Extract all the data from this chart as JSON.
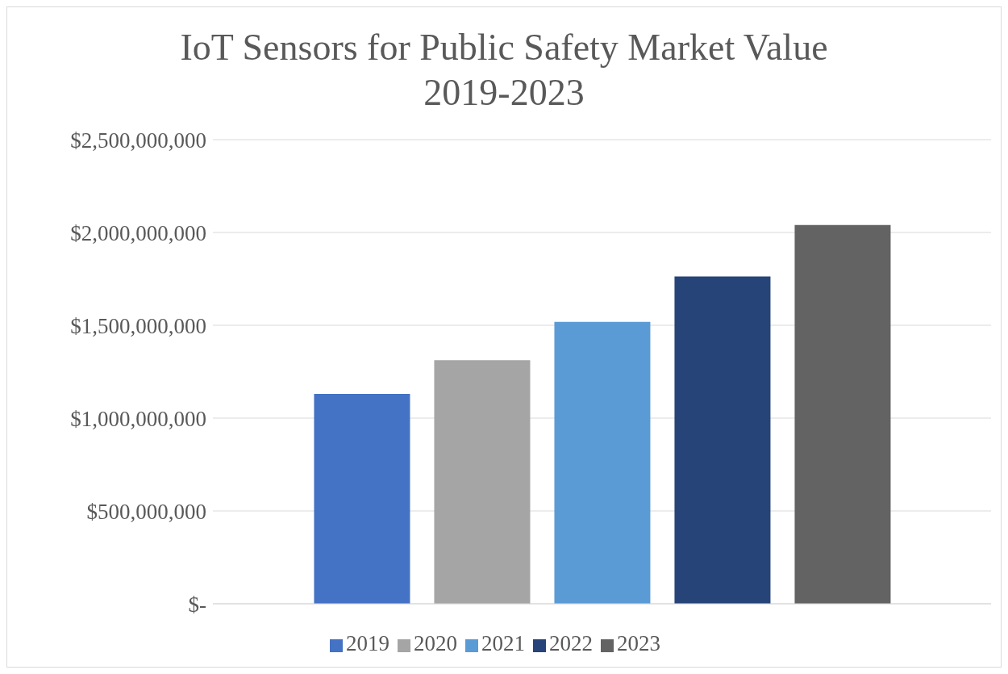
{
  "chart_data": {
    "type": "bar",
    "title": "IoT Sensors for Public Safety Market Value 2019-2023",
    "categories": [
      null
    ],
    "series": [
      {
        "name": "2019",
        "color": "#4472c4",
        "values": [
          1130000000
        ]
      },
      {
        "name": "2020",
        "color": "#a5a5a5",
        "values": [
          1312000000
        ]
      },
      {
        "name": "2021",
        "color": "#5b9bd5",
        "values": [
          1518000000
        ]
      },
      {
        "name": "2022",
        "color": "#264478",
        "values": [
          1763000000
        ]
      },
      {
        "name": "2023",
        "color": "#636363",
        "values": [
          2040000000
        ]
      }
    ],
    "ylim": [
      0,
      2500000000
    ],
    "yticks": [
      {
        "value": 0,
        "label": "$-"
      },
      {
        "value": 500000000,
        "label": "$500,000,000"
      },
      {
        "value": 1000000000,
        "label": "$1,000,000,000"
      },
      {
        "value": 1500000000,
        "label": "$1,500,000,000"
      },
      {
        "value": 2000000000,
        "label": "$2,000,000,000"
      },
      {
        "value": 2500000000,
        "label": "$2,500,000,000"
      }
    ],
    "grid": "y",
    "legend": "bottom"
  }
}
